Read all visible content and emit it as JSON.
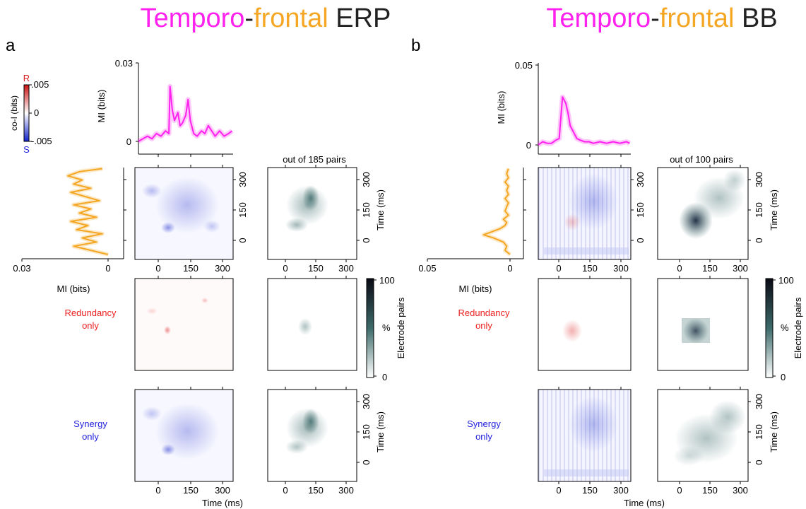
{
  "figure": {
    "panel_a": {
      "letter": "a",
      "title_parts": [
        {
          "text": "Temporo",
          "color": "#ff22ee"
        },
        {
          "text": "-",
          "color": "#222222"
        },
        {
          "text": "frontal",
          "color": "#f5a623"
        },
        {
          "text": " ERP",
          "color": "#222222"
        }
      ],
      "pairs_caption": "out of 185 pairs"
    },
    "panel_b": {
      "letter": "b",
      "title_parts": [
        {
          "text": "Temporo",
          "color": "#ff22ee"
        },
        {
          "text": "-",
          "color": "#222222"
        },
        {
          "text": "frontal",
          "color": "#f5a623"
        },
        {
          "text": " BB",
          "color": "#222222"
        }
      ],
      "pairs_caption": "out of 100 pairs"
    },
    "colorbar_coi": {
      "label": "co-I (bits)",
      "top_letter": "R",
      "bottom_letter": "S",
      "ticks": [
        ".005",
        "0",
        "-.005"
      ],
      "top_color": "#dd2222",
      "bottom_color": "#2222dd"
    },
    "colorbar_pairs": {
      "label": "Electrode pairs",
      "unit": "%",
      "ticks": [
        "100",
        "0"
      ]
    },
    "row_labels": {
      "redundancy": [
        "Redundancy",
        "only"
      ],
      "synergy": [
        "Synergy",
        "only"
      ],
      "redundancy_color": "#ee2222",
      "synergy_color": "#2222dd"
    },
    "axis_labels": {
      "mi": "MI (bits)",
      "time": "Time (ms)"
    },
    "tick_labels": {
      "time": [
        "0",
        "150",
        "300"
      ],
      "mi_a_top": [
        "0.03",
        "0"
      ],
      "mi_b_top": [
        "0.05",
        "0"
      ],
      "mi_a_left": [
        "0.03",
        "0"
      ],
      "mi_b_left": [
        "0.05",
        "0"
      ]
    }
  },
  "chart_data": [
    {
      "type": "line",
      "title": "",
      "xlabel": "",
      "ylabel": "MI (bits)",
      "ylim": [
        0,
        0.03
      ],
      "color": "#ff22ee",
      "series": [
        {
          "x": [
            -80,
            -60,
            -40,
            -20,
            0,
            20,
            40,
            55,
            60,
            70,
            80,
            95,
            105,
            115,
            130,
            140,
            150,
            165,
            180,
            200,
            215,
            230,
            245,
            260,
            280,
            300,
            320,
            335
          ],
          "values": [
            0.0,
            0.001,
            0.002,
            0.001,
            0.003,
            0.002,
            0.004,
            0.003,
            0.021,
            0.012,
            0.008,
            0.011,
            0.006,
            0.007,
            0.01,
            0.016,
            0.008,
            0.003,
            0.002,
            0.004,
            0.003,
            0.006,
            0.004,
            0.002,
            0.004,
            0.002,
            0.003,
            0.004
          ]
        }
      ]
    },
    {
      "type": "line",
      "title": "",
      "xlabel": "MI (bits)",
      "ylabel": "",
      "xlim": [
        0.03,
        0
      ],
      "color": "#f5a623",
      "series": [
        {
          "y": [
            -80,
            -60,
            -40,
            -20,
            0,
            20,
            40,
            60,
            80,
            100,
            120,
            140,
            160,
            180,
            200,
            220,
            240,
            260,
            280,
            300,
            320,
            335
          ],
          "values": [
            0.0,
            0.006,
            0.012,
            0.004,
            0.009,
            0.002,
            0.011,
            0.007,
            0.013,
            0.004,
            0.01,
            0.006,
            0.012,
            0.003,
            0.008,
            0.013,
            0.006,
            0.012,
            0.009,
            0.014,
            0.01,
            0.002
          ]
        }
      ]
    },
    {
      "type": "line",
      "title": "",
      "xlabel": "",
      "ylabel": "MI (bits)",
      "ylim": [
        0,
        0.05
      ],
      "color": "#ff22ee",
      "series": [
        {
          "x": [
            -80,
            -60,
            -40,
            -20,
            0,
            15,
            30,
            45,
            55,
            65,
            80,
            95,
            110,
            130,
            150,
            170,
            200,
            230,
            260,
            290,
            320,
            335
          ],
          "values": [
            0.0,
            0.002,
            0.001,
            0.001,
            0.003,
            0.004,
            0.03,
            0.026,
            0.02,
            0.012,
            0.008,
            0.004,
            0.003,
            0.002,
            0.002,
            0.001,
            0.002,
            0.001,
            0.002,
            0.001,
            0.002,
            0.001
          ]
        }
      ]
    },
    {
      "type": "line",
      "title": "",
      "xlabel": "MI (bits)",
      "ylabel": "",
      "xlim": [
        0.05,
        0
      ],
      "color": "#f5a623",
      "series": [
        {
          "y": [
            -80,
            -60,
            -40,
            -20,
            0,
            15,
            30,
            45,
            60,
            75,
            90,
            110,
            130,
            150,
            170,
            190,
            210,
            230,
            250,
            270,
            290,
            310,
            335
          ],
          "values": [
            0.0,
            0.003,
            0.002,
            0.004,
            0.01,
            0.016,
            0.011,
            0.006,
            0.003,
            0.002,
            0.004,
            0.001,
            0.003,
            0.002,
            0.001,
            0.003,
            0.001,
            0.002,
            0.001,
            0.003,
            0.001,
            0.002,
            0.001
          ]
        }
      ]
    }
  ]
}
